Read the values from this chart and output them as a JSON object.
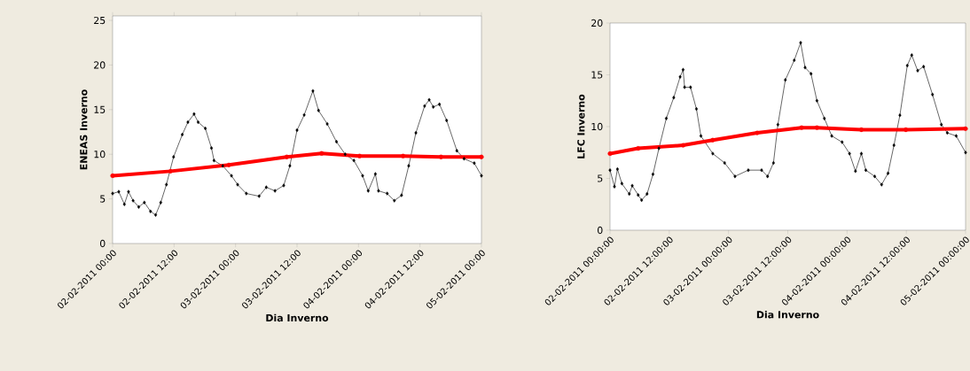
{
  "chart_data": [
    {
      "type": "line",
      "xlabel": "Dia Inverno",
      "ylabel": "ENEAS Inverno",
      "xlim": [
        "2011-02-02T00:00",
        "2011-02-05T00:00"
      ],
      "ylim": [
        0,
        25.5
      ],
      "yticks": [
        0,
        5,
        10,
        15,
        20,
        25
      ],
      "xticks": [
        {
          "value": "2011-02-02T00:00",
          "label": "02-02-2011 00:00"
        },
        {
          "value": "2011-02-02T12:00",
          "label": "02-02-2011 12:00"
        },
        {
          "value": "2011-02-03T00:00",
          "label": "03-02-2011 00:00"
        },
        {
          "value": "2011-02-03T12:00",
          "label": "03-02-2011 12:00"
        },
        {
          "value": "2011-02-04T00:00",
          "label": "04-02-2011 00:00"
        },
        {
          "value": "2011-02-04T12:00",
          "label": "04-02-2011 12:00"
        },
        {
          "value": "2011-02-05T00:00",
          "label": "05-02-2011 00:00"
        }
      ],
      "grid": false,
      "series": [
        {
          "color": "#000000",
          "marker": "diamond",
          "x": [
            "2011-02-02T00:00",
            "2011-02-02T01:12",
            "2011-02-02T02:18",
            "2011-02-02T03:06",
            "2011-02-02T04:00",
            "2011-02-02T05:06",
            "2011-02-02T06:12",
            "2011-02-02T07:24",
            "2011-02-02T08:24",
            "2011-02-02T09:24",
            "2011-02-02T10:30",
            "2011-02-02T11:54",
            "2011-02-02T13:36",
            "2011-02-02T14:42",
            "2011-02-02T15:54",
            "2011-02-02T16:42",
            "2011-02-02T18:06",
            "2011-02-02T19:18",
            "2011-02-02T19:48",
            "2011-02-02T21:30",
            "2011-02-02T23:12",
            "2011-02-03T00:24",
            "2011-02-03T02:06",
            "2011-02-03T04:36",
            "2011-02-03T06:00",
            "2011-02-03T07:42",
            "2011-02-03T09:24",
            "2011-02-03T10:36",
            "2011-02-03T12:00",
            "2011-02-03T13:24",
            "2011-02-03T15:06",
            "2011-02-03T16:12",
            "2011-02-03T17:54",
            "2011-02-03T19:42",
            "2011-02-03T21:24",
            "2011-02-03T23:06",
            "2011-02-04T00:48",
            "2011-02-04T01:54",
            "2011-02-04T03:18",
            "2011-02-04T03:54",
            "2011-02-04T05:36",
            "2011-02-04T07:00",
            "2011-02-04T08:24",
            "2011-02-04T09:48",
            "2011-02-04T11:12",
            "2011-02-04T12:54",
            "2011-02-04T13:48",
            "2011-02-04T14:36",
            "2011-02-04T15:48",
            "2011-02-04T17:12",
            "2011-02-04T19:12",
            "2011-02-04T20:36",
            "2011-02-04T22:36",
            "2011-02-05T00:00"
          ],
          "values": [
            5.6,
            5.8,
            4.4,
            5.8,
            4.8,
            4.1,
            4.6,
            3.6,
            3.2,
            4.6,
            6.6,
            9.7,
            12.2,
            13.6,
            14.5,
            13.6,
            12.9,
            10.7,
            9.3,
            8.7,
            7.6,
            6.6,
            5.6,
            5.3,
            6.3,
            5.9,
            6.5,
            8.7,
            12.7,
            14.4,
            17.1,
            14.9,
            13.4,
            11.4,
            10.0,
            9.3,
            7.6,
            5.9,
            7.8,
            5.9,
            5.6,
            4.8,
            5.4,
            8.7,
            12.4,
            15.4,
            16.1,
            15.3,
            15.6,
            13.8,
            10.4,
            9.5,
            9.0,
            7.6
          ]
        },
        {
          "color": "#ff0000",
          "marker": "circle",
          "x": [
            "2011-02-02T00:00",
            "2011-02-02T11:18",
            "2011-02-02T22:42",
            "2011-02-03T10:00",
            "2011-02-03T16:48",
            "2011-02-04T00:12",
            "2011-02-04T08:42",
            "2011-02-04T16:06",
            "2011-02-05T00:00"
          ],
          "values": [
            7.6,
            8.1,
            8.8,
            9.7,
            10.1,
            9.8,
            9.8,
            9.7,
            9.7
          ]
        }
      ]
    },
    {
      "type": "line",
      "xlabel": "Dia Inverno",
      "ylabel": "LFC Inverno",
      "xlim": [
        "2011-02-02T00:00",
        "2011-02-05T00:00"
      ],
      "ylim": [
        0,
        20
      ],
      "yticks": [
        0,
        5,
        10,
        15,
        20
      ],
      "xticks": [
        {
          "value": "2011-02-02T00:00",
          "label": "02-02-2011 00:00:00"
        },
        {
          "value": "2011-02-02T12:00",
          "label": "02-02-2011 12:00:00"
        },
        {
          "value": "2011-02-03T00:00",
          "label": "03-02-2011 00:00:00"
        },
        {
          "value": "2011-02-03T12:00",
          "label": "03-02-2011 12:00:00"
        },
        {
          "value": "2011-02-04T00:00",
          "label": "04-02-2011 00:00:00"
        },
        {
          "value": "2011-02-04T12:00",
          "label": "04-02-2011 12:00:00"
        },
        {
          "value": "2011-02-05T00:00",
          "label": "05-02-2011 00:00:00"
        }
      ],
      "grid": false,
      "series": [
        {
          "color": "#000000",
          "marker": "diamond",
          "x": [
            "2011-02-02T00:00",
            "2011-02-02T00:54",
            "2011-02-02T01:30",
            "2011-02-02T02:24",
            "2011-02-02T03:54",
            "2011-02-02T04:30",
            "2011-02-02T05:42",
            "2011-02-02T06:24",
            "2011-02-02T07:30",
            "2011-02-02T08:42",
            "2011-02-02T09:54",
            "2011-02-02T11:24",
            "2011-02-02T12:54",
            "2011-02-02T14:12",
            "2011-02-02T14:48",
            "2011-02-02T15:06",
            "2011-02-02T16:18",
            "2011-02-02T17:30",
            "2011-02-02T18:24",
            "2011-02-02T20:48",
            "2011-02-02T23:12",
            "2011-02-03T01:18",
            "2011-02-03T04:00",
            "2011-02-03T06:42",
            "2011-02-03T07:54",
            "2011-02-03T09:06",
            "2011-02-03T10:00",
            "2011-02-03T11:30",
            "2011-02-03T13:18",
            "2011-02-03T14:36",
            "2011-02-03T15:30",
            "2011-02-03T16:42",
            "2011-02-03T17:54",
            "2011-02-03T19:24",
            "2011-02-03T20:54",
            "2011-02-03T23:00",
            "2011-02-04T00:30",
            "2011-02-04T01:42",
            "2011-02-04T02:54",
            "2011-02-04T03:48",
            "2011-02-04T05:36",
            "2011-02-04T07:00",
            "2011-02-04T08:18",
            "2011-02-04T09:30",
            "2011-02-04T10:42",
            "2011-02-04T12:12",
            "2011-02-04T13:06",
            "2011-02-04T14:18",
            "2011-02-04T15:30",
            "2011-02-04T17:18",
            "2011-02-04T19:06",
            "2011-02-04T20:18",
            "2011-02-04T22:06",
            "2011-02-05T00:00"
          ],
          "values": [
            5.8,
            4.2,
            5.9,
            4.5,
            3.5,
            4.3,
            3.4,
            2.9,
            3.5,
            5.4,
            7.9,
            10.8,
            12.8,
            14.8,
            15.5,
            13.8,
            13.8,
            11.7,
            9.1,
            7.4,
            6.5,
            5.2,
            5.8,
            5.8,
            5.2,
            6.5,
            10.2,
            14.5,
            16.4,
            18.1,
            15.7,
            15.1,
            12.5,
            10.8,
            9.1,
            8.5,
            7.4,
            5.7,
            7.4,
            5.8,
            5.2,
            4.4,
            5.5,
            8.2,
            11.1,
            15.9,
            16.9,
            15.4,
            15.8,
            13.1,
            10.2,
            9.4,
            9.1,
            7.5
          ]
        },
        {
          "color": "#ff0000",
          "marker": "circle",
          "x": [
            "2011-02-02T00:00",
            "2011-02-02T05:42",
            "2011-02-02T14:48",
            "2011-02-02T20:48",
            "2011-02-03T05:48",
            "2011-02-03T14:48",
            "2011-02-03T17:54",
            "2011-02-04T02:54",
            "2011-02-04T11:54",
            "2011-02-05T00:00"
          ],
          "values": [
            7.4,
            7.9,
            8.2,
            8.7,
            9.4,
            9.9,
            9.9,
            9.7,
            9.7,
            9.8
          ]
        }
      ]
    }
  ]
}
